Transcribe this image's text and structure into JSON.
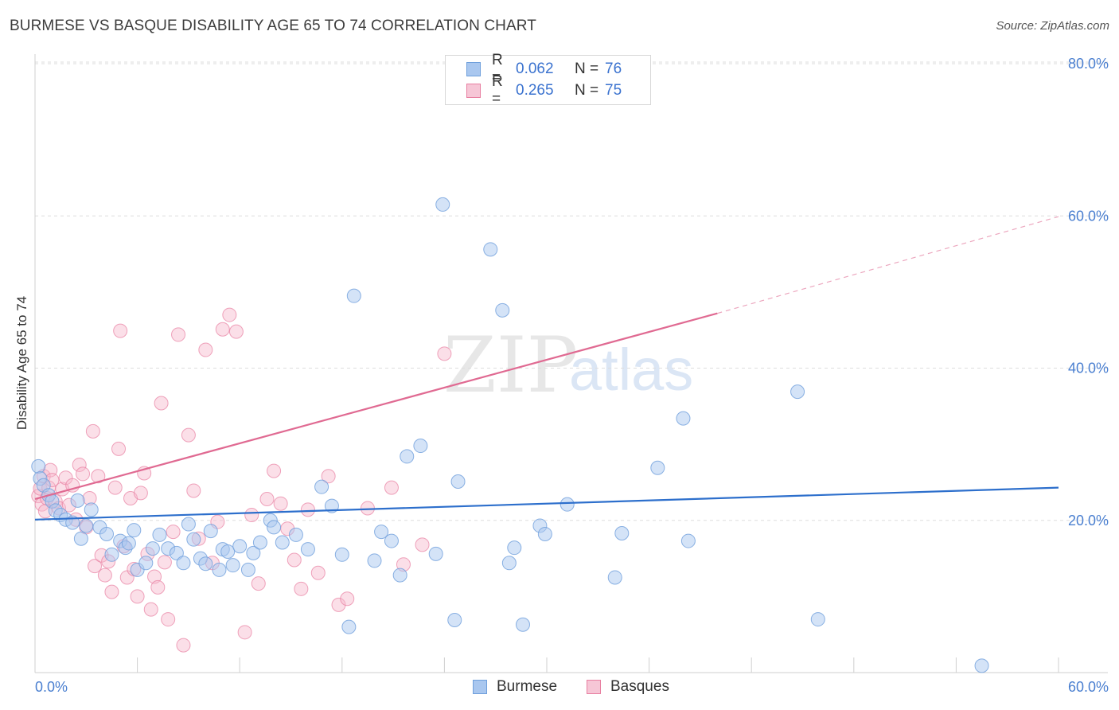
{
  "title": "BURMESE VS BASQUE DISABILITY AGE 65 TO 74 CORRELATION CHART",
  "source": "Source: ZipAtlas.com",
  "colors": {
    "blue_fill": "#a9c7ef",
    "blue_stroke": "#6f9fdc",
    "blue_line": "#2d6fcc",
    "pink_fill": "#f6b8cb",
    "pink_stroke": "#e87fa1",
    "pink_line": "#e06a92",
    "accent_text": "#3a72cf",
    "grid": "#dddddd"
  },
  "legend": {
    "rows": [
      {
        "r_label": "R =",
        "r_value": "0.062",
        "n_label": "N =",
        "n_value": "76"
      },
      {
        "r_label": "R =",
        "r_value": "0.265",
        "n_label": "N =",
        "n_value": "75"
      }
    ]
  },
  "bottom_legend": [
    "Burmese",
    "Basques"
  ],
  "chart_data": {
    "type": "scatter",
    "title": "BURMESE VS BASQUE DISABILITY AGE 65 TO 74 CORRELATION CHART",
    "xlabel": "",
    "ylabel": "Disability Age 65 to 74",
    "xlim": [
      0,
      60
    ],
    "ylim": [
      0,
      80
    ],
    "x_tick_labels": [
      "0.0%",
      "60.0%"
    ],
    "y_tick_labels": [
      "20.0%",
      "40.0%",
      "60.0%",
      "80.0%"
    ],
    "y_ticks": [
      20,
      40,
      60,
      80
    ],
    "watermark": "ZIPatlas",
    "series": [
      {
        "name": "Burmese",
        "r": 0.062,
        "n": 76,
        "trend": {
          "x": [
            0,
            60
          ],
          "y": [
            20.1,
            24.3
          ]
        },
        "points": [
          [
            0.2,
            27.1
          ],
          [
            0.3,
            25.5
          ],
          [
            0.5,
            24.6
          ],
          [
            0.8,
            23.3
          ],
          [
            1.0,
            22.5
          ],
          [
            1.2,
            21.3
          ],
          [
            1.5,
            20.7
          ],
          [
            1.8,
            20.1
          ],
          [
            2.2,
            19.7
          ],
          [
            2.5,
            22.6
          ],
          [
            2.7,
            17.6
          ],
          [
            3.0,
            19.3
          ],
          [
            3.3,
            21.4
          ],
          [
            3.8,
            19.1
          ],
          [
            4.2,
            18.2
          ],
          [
            4.5,
            15.5
          ],
          [
            5.0,
            17.3
          ],
          [
            5.3,
            16.4
          ],
          [
            5.5,
            17.0
          ],
          [
            5.8,
            18.7
          ],
          [
            6.0,
            13.5
          ],
          [
            6.5,
            14.4
          ],
          [
            6.9,
            16.3
          ],
          [
            7.3,
            18.1
          ],
          [
            7.8,
            16.3
          ],
          [
            8.3,
            15.7
          ],
          [
            8.7,
            14.4
          ],
          [
            9.0,
            19.5
          ],
          [
            9.3,
            17.5
          ],
          [
            9.7,
            15.0
          ],
          [
            10.0,
            14.3
          ],
          [
            10.3,
            18.6
          ],
          [
            10.8,
            13.5
          ],
          [
            11.0,
            16.2
          ],
          [
            11.3,
            15.9
          ],
          [
            11.6,
            14.1
          ],
          [
            12.0,
            16.6
          ],
          [
            12.5,
            13.5
          ],
          [
            12.8,
            15.7
          ],
          [
            13.2,
            17.1
          ],
          [
            13.8,
            20.0
          ],
          [
            14.0,
            19.1
          ],
          [
            14.5,
            17.1
          ],
          [
            15.3,
            18.1
          ],
          [
            16.0,
            16.2
          ],
          [
            16.8,
            24.4
          ],
          [
            17.4,
            21.9
          ],
          [
            18.0,
            15.5
          ],
          [
            18.4,
            6.0
          ],
          [
            18.7,
            49.5
          ],
          [
            19.9,
            14.7
          ],
          [
            20.3,
            18.5
          ],
          [
            20.9,
            17.3
          ],
          [
            21.4,
            12.8
          ],
          [
            21.8,
            28.4
          ],
          [
            22.6,
            29.8
          ],
          [
            23.5,
            15.6
          ],
          [
            23.9,
            61.5
          ],
          [
            24.6,
            6.9
          ],
          [
            24.8,
            25.1
          ],
          [
            26.7,
            55.6
          ],
          [
            27.4,
            47.6
          ],
          [
            27.8,
            14.4
          ],
          [
            28.1,
            16.4
          ],
          [
            28.6,
            6.3
          ],
          [
            29.6,
            19.3
          ],
          [
            29.9,
            18.2
          ],
          [
            31.2,
            22.1
          ],
          [
            34.0,
            12.5
          ],
          [
            34.4,
            18.3
          ],
          [
            36.5,
            26.9
          ],
          [
            38.0,
            33.4
          ],
          [
            38.3,
            17.3
          ],
          [
            44.7,
            36.9
          ],
          [
            45.9,
            7.0
          ],
          [
            55.5,
            0.9
          ]
        ]
      },
      {
        "name": "Basques",
        "r": 0.265,
        "n": 75,
        "trend": {
          "x": [
            0,
            40
          ],
          "y": [
            22.8,
            47.2
          ]
        },
        "trend_dashed": {
          "x": [
            40,
            60
          ],
          "y": [
            47.2,
            59.9
          ]
        },
        "points": [
          [
            0.2,
            23.2
          ],
          [
            0.3,
            24.2
          ],
          [
            0.4,
            22.1
          ],
          [
            0.5,
            25.8
          ],
          [
            0.6,
            21.2
          ],
          [
            0.7,
            22.9
          ],
          [
            0.8,
            24.3
          ],
          [
            0.9,
            26.6
          ],
          [
            1.0,
            25.3
          ],
          [
            1.2,
            22.5
          ],
          [
            1.4,
            21.6
          ],
          [
            1.6,
            24.1
          ],
          [
            1.8,
            25.6
          ],
          [
            2.0,
            22.0
          ],
          [
            2.2,
            24.6
          ],
          [
            2.4,
            20.1
          ],
          [
            2.6,
            27.3
          ],
          [
            2.8,
            26.1
          ],
          [
            3.0,
            19.1
          ],
          [
            3.2,
            22.9
          ],
          [
            3.4,
            31.7
          ],
          [
            3.5,
            14.0
          ],
          [
            3.7,
            25.8
          ],
          [
            3.9,
            15.4
          ],
          [
            4.1,
            12.8
          ],
          [
            4.3,
            14.6
          ],
          [
            4.5,
            10.6
          ],
          [
            4.7,
            24.3
          ],
          [
            4.9,
            29.4
          ],
          [
            5.0,
            44.9
          ],
          [
            5.2,
            16.6
          ],
          [
            5.4,
            12.5
          ],
          [
            5.6,
            22.9
          ],
          [
            5.8,
            13.6
          ],
          [
            6.0,
            10.0
          ],
          [
            6.2,
            23.6
          ],
          [
            6.4,
            26.2
          ],
          [
            6.6,
            15.6
          ],
          [
            6.8,
            8.3
          ],
          [
            7.0,
            12.6
          ],
          [
            7.2,
            11.2
          ],
          [
            7.4,
            35.4
          ],
          [
            7.6,
            14.5
          ],
          [
            7.8,
            7.0
          ],
          [
            8.1,
            18.5
          ],
          [
            8.4,
            44.4
          ],
          [
            8.7,
            3.6
          ],
          [
            9.0,
            31.2
          ],
          [
            9.3,
            23.9
          ],
          [
            9.6,
            17.6
          ],
          [
            10.0,
            42.4
          ],
          [
            10.4,
            14.4
          ],
          [
            10.7,
            19.8
          ],
          [
            11.0,
            45.1
          ],
          [
            11.4,
            47.0
          ],
          [
            11.8,
            44.8
          ],
          [
            12.3,
            5.3
          ],
          [
            12.7,
            20.7
          ],
          [
            13.1,
            11.7
          ],
          [
            13.6,
            22.8
          ],
          [
            14.0,
            26.5
          ],
          [
            14.4,
            22.2
          ],
          [
            14.8,
            18.9
          ],
          [
            15.2,
            14.8
          ],
          [
            15.6,
            11.0
          ],
          [
            16.0,
            21.4
          ],
          [
            16.6,
            13.1
          ],
          [
            17.2,
            25.8
          ],
          [
            17.8,
            8.9
          ],
          [
            18.3,
            9.7
          ],
          [
            19.5,
            21.6
          ],
          [
            20.9,
            24.3
          ],
          [
            21.6,
            14.2
          ],
          [
            22.7,
            16.8
          ],
          [
            24.0,
            41.9
          ]
        ]
      }
    ]
  }
}
